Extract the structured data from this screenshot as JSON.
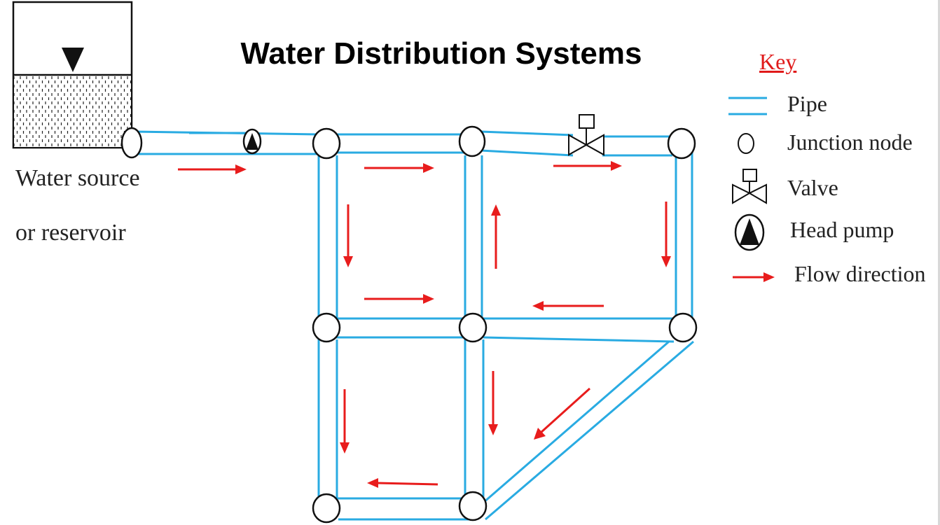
{
  "title": "Water Distribution Systems",
  "source_label": [
    "Water source",
    "or reservoir"
  ],
  "key": {
    "title": "Key",
    "items": [
      {
        "icon": "pipe-icon",
        "label": "Pipe"
      },
      {
        "icon": "junction-node-icon",
        "label": "Junction node"
      },
      {
        "icon": "valve-icon",
        "label": "Valve"
      },
      {
        "icon": "head-pump-icon",
        "label": "Head pump"
      },
      {
        "icon": "flow-direction-arrow-icon",
        "label": "Flow direction"
      }
    ]
  },
  "colors": {
    "pipe": "#29abe2",
    "arrow": "#e81c1c",
    "stroke": "#111111"
  }
}
